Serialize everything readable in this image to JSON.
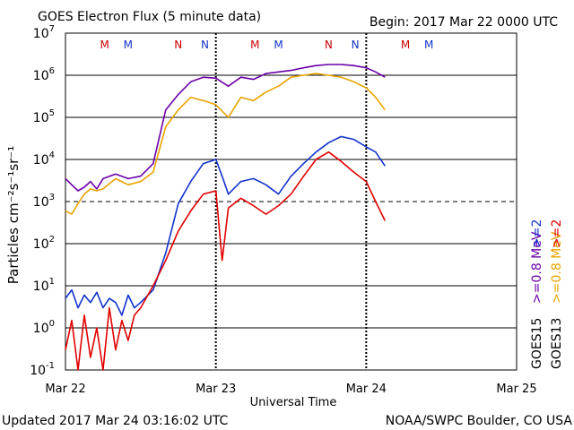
{
  "header": {
    "title": "GOES Electron Flux (5 minute data)",
    "begin": "Begin: 2017 Mar 22 0000 UTC"
  },
  "footer": {
    "updated": "Updated 2017 Mar 24 03:16:02 UTC",
    "credit": "NOAA/SWPC Boulder, CO USA"
  },
  "chart_data": {
    "type": "line",
    "title": "GOES Electron Flux (5 minute data)",
    "xlabel": "Universal Time",
    "ylabel": "Particles cm⁻²s⁻¹sr⁻¹",
    "y_scale": "log",
    "ylim": [
      0.1,
      10000000
    ],
    "xlim": [
      "2017-03-22T00:00",
      "2017-03-25T00:00"
    ],
    "x_ticks": [
      "Mar 22",
      "Mar 23",
      "Mar 24",
      "Mar 25"
    ],
    "y_ticks": [
      {
        "base": "10",
        "exp": "7",
        "value": 10000000
      },
      {
        "base": "10",
        "exp": "6",
        "value": 1000000
      },
      {
        "base": "10",
        "exp": "5",
        "value": 100000
      },
      {
        "base": "10",
        "exp": "4",
        "value": 10000
      },
      {
        "base": "10",
        "exp": "3",
        "value": 1000
      },
      {
        "base": "10",
        "exp": "2",
        "value": 100
      },
      {
        "base": "10",
        "exp": "1",
        "value": 10
      },
      {
        "base": "10",
        "exp": "0",
        "value": 1
      },
      {
        "base": "10",
        "exp": "-1",
        "value": 0.1
      }
    ],
    "dashed_threshold": 1000,
    "grid": true,
    "markers": [
      {
        "label": "M",
        "time": "2017-03-22T06:15",
        "color": "#cc0000"
      },
      {
        "label": "M",
        "time": "2017-03-22T10:00",
        "color": "#1133cc"
      },
      {
        "label": "N",
        "time": "2017-03-22T18:00",
        "color": "#cc0000"
      },
      {
        "label": "N",
        "time": "2017-03-22T22:15",
        "color": "#1133cc"
      },
      {
        "label": "M",
        "time": "2017-03-23T06:15",
        "color": "#cc0000"
      },
      {
        "label": "M",
        "time": "2017-03-23T10:00",
        "color": "#1133cc"
      },
      {
        "label": "N",
        "time": "2017-03-23T18:00",
        "color": "#cc0000"
      },
      {
        "label": "N",
        "time": "2017-03-23T22:15",
        "color": "#1133cc"
      },
      {
        "label": "M",
        "time": "2017-03-24T06:15",
        "color": "#cc0000"
      },
      {
        "label": "M",
        "time": "2017-03-24T10:00",
        "color": "#1133cc"
      }
    ],
    "legend": {
      "placement": "right",
      "columns": [
        {
          "title": "GOES15",
          "entries": [
            {
              "label": ">=0.8 MeV",
              "color": "#6a00a8"
            },
            {
              "label": ">=2",
              "color": "#1133cc"
            }
          ]
        },
        {
          "title": "GOES13",
          "entries": [
            {
              "label": ">=0.8 MeV",
              "color": "#e8a300"
            },
            {
              "label": ">=2",
              "color": "#e00000"
            }
          ]
        }
      ]
    },
    "series": [
      {
        "color": "#6a00a8",
        "x": [
          "2017-03-22T00:00",
          "2017-03-22T01:00",
          "2017-03-22T02:00",
          "2017-03-22T03:00",
          "2017-03-22T04:00",
          "2017-03-22T05:00",
          "2017-03-22T06:00",
          "2017-03-22T08:00",
          "2017-03-22T10:00",
          "2017-03-22T12:00",
          "2017-03-22T14:00",
          "2017-03-22T16:00",
          "2017-03-22T18:00",
          "2017-03-22T20:00",
          "2017-03-22T22:00",
          "2017-03-23T00:00",
          "2017-03-23T02:00",
          "2017-03-23T04:00",
          "2017-03-23T06:00",
          "2017-03-23T08:00",
          "2017-03-23T10:00",
          "2017-03-23T12:00",
          "2017-03-23T14:00",
          "2017-03-23T16:00",
          "2017-03-23T18:00",
          "2017-03-23T20:00",
          "2017-03-23T22:00",
          "2017-03-24T00:00",
          "2017-03-24T01:30",
          "2017-03-24T03:00"
        ],
        "y": [
          3500,
          2500,
          1800,
          2200,
          3000,
          2000,
          3500,
          4500,
          3500,
          4000,
          8000,
          150000,
          350000,
          700000,
          900000,
          850000,
          550000,
          900000,
          800000,
          1100000,
          1200000,
          1300000,
          1500000,
          1700000,
          1800000,
          1800000,
          1700000,
          1500000,
          1200000,
          900000
        ]
      },
      {
        "color": "#e8a300",
        "x": [
          "2017-03-22T00:00",
          "2017-03-22T01:00",
          "2017-03-22T02:00",
          "2017-03-22T03:00",
          "2017-03-22T04:00",
          "2017-03-22T05:00",
          "2017-03-22T06:00",
          "2017-03-22T08:00",
          "2017-03-22T10:00",
          "2017-03-22T12:00",
          "2017-03-22T14:00",
          "2017-03-22T16:00",
          "2017-03-22T18:00",
          "2017-03-22T20:00",
          "2017-03-22T22:00",
          "2017-03-23T00:00",
          "2017-03-23T02:00",
          "2017-03-23T04:00",
          "2017-03-23T06:00",
          "2017-03-23T08:00",
          "2017-03-23T10:00",
          "2017-03-23T12:00",
          "2017-03-23T14:00",
          "2017-03-23T16:00",
          "2017-03-23T18:00",
          "2017-03-23T20:00",
          "2017-03-23T22:00",
          "2017-03-24T00:00",
          "2017-03-24T01:30",
          "2017-03-24T03:00"
        ],
        "y": [
          600,
          500,
          900,
          1500,
          2000,
          1800,
          2000,
          3500,
          2500,
          3000,
          5000,
          60000,
          150000,
          300000,
          250000,
          200000,
          100000,
          300000,
          250000,
          400000,
          550000,
          900000,
          1000000,
          1100000,
          1000000,
          900000,
          700000,
          500000,
          300000,
          150000
        ]
      },
      {
        "color": "#1133cc",
        "x": [
          "2017-03-22T00:00",
          "2017-03-22T01:00",
          "2017-03-22T02:00",
          "2017-03-22T03:00",
          "2017-03-22T04:00",
          "2017-03-22T05:00",
          "2017-03-22T06:00",
          "2017-03-22T07:00",
          "2017-03-22T08:00",
          "2017-03-22T09:00",
          "2017-03-22T10:00",
          "2017-03-22T11:00",
          "2017-03-22T12:00",
          "2017-03-22T14:00",
          "2017-03-22T16:00",
          "2017-03-22T18:00",
          "2017-03-22T20:00",
          "2017-03-22T22:00",
          "2017-03-23T00:00",
          "2017-03-23T01:00",
          "2017-03-23T02:00",
          "2017-03-23T04:00",
          "2017-03-23T06:00",
          "2017-03-23T08:00",
          "2017-03-23T10:00",
          "2017-03-23T12:00",
          "2017-03-23T14:00",
          "2017-03-23T16:00",
          "2017-03-23T18:00",
          "2017-03-23T20:00",
          "2017-03-23T22:00",
          "2017-03-24T00:00",
          "2017-03-24T01:30",
          "2017-03-24T03:00"
        ],
        "y": [
          5,
          8,
          3,
          6,
          4,
          7,
          3,
          5,
          4,
          2,
          6,
          3,
          4,
          8,
          60,
          900,
          3000,
          8000,
          10000,
          4000,
          1500,
          3000,
          3500,
          2500,
          1500,
          4000,
          8000,
          15000,
          25000,
          35000,
          30000,
          20000,
          15000,
          7000
        ]
      },
      {
        "color": "#e00000",
        "x": [
          "2017-03-22T00:00",
          "2017-03-22T01:00",
          "2017-03-22T02:00",
          "2017-03-22T03:00",
          "2017-03-22T04:00",
          "2017-03-22T05:00",
          "2017-03-22T06:00",
          "2017-03-22T07:00",
          "2017-03-22T08:00",
          "2017-03-22T09:00",
          "2017-03-22T10:00",
          "2017-03-22T11:00",
          "2017-03-22T12:00",
          "2017-03-22T14:00",
          "2017-03-22T16:00",
          "2017-03-22T18:00",
          "2017-03-22T20:00",
          "2017-03-22T22:00",
          "2017-03-23T00:00",
          "2017-03-23T01:00",
          "2017-03-23T02:00",
          "2017-03-23T04:00",
          "2017-03-23T06:00",
          "2017-03-23T08:00",
          "2017-03-23T10:00",
          "2017-03-23T12:00",
          "2017-03-23T14:00",
          "2017-03-23T16:00",
          "2017-03-23T18:00",
          "2017-03-23T20:00",
          "2017-03-23T22:00",
          "2017-03-24T00:00",
          "2017-03-24T01:30",
          "2017-03-24T03:00"
        ],
        "y": [
          0.3,
          1.5,
          0.1,
          2,
          0.2,
          1,
          0.1,
          3,
          0.3,
          1.5,
          0.5,
          2,
          3,
          10,
          40,
          200,
          600,
          1500,
          1800,
          40,
          700,
          1200,
          800,
          500,
          800,
          1500,
          4000,
          10000,
          15000,
          9000,
          5000,
          3000,
          1000,
          350
        ]
      }
    ]
  }
}
